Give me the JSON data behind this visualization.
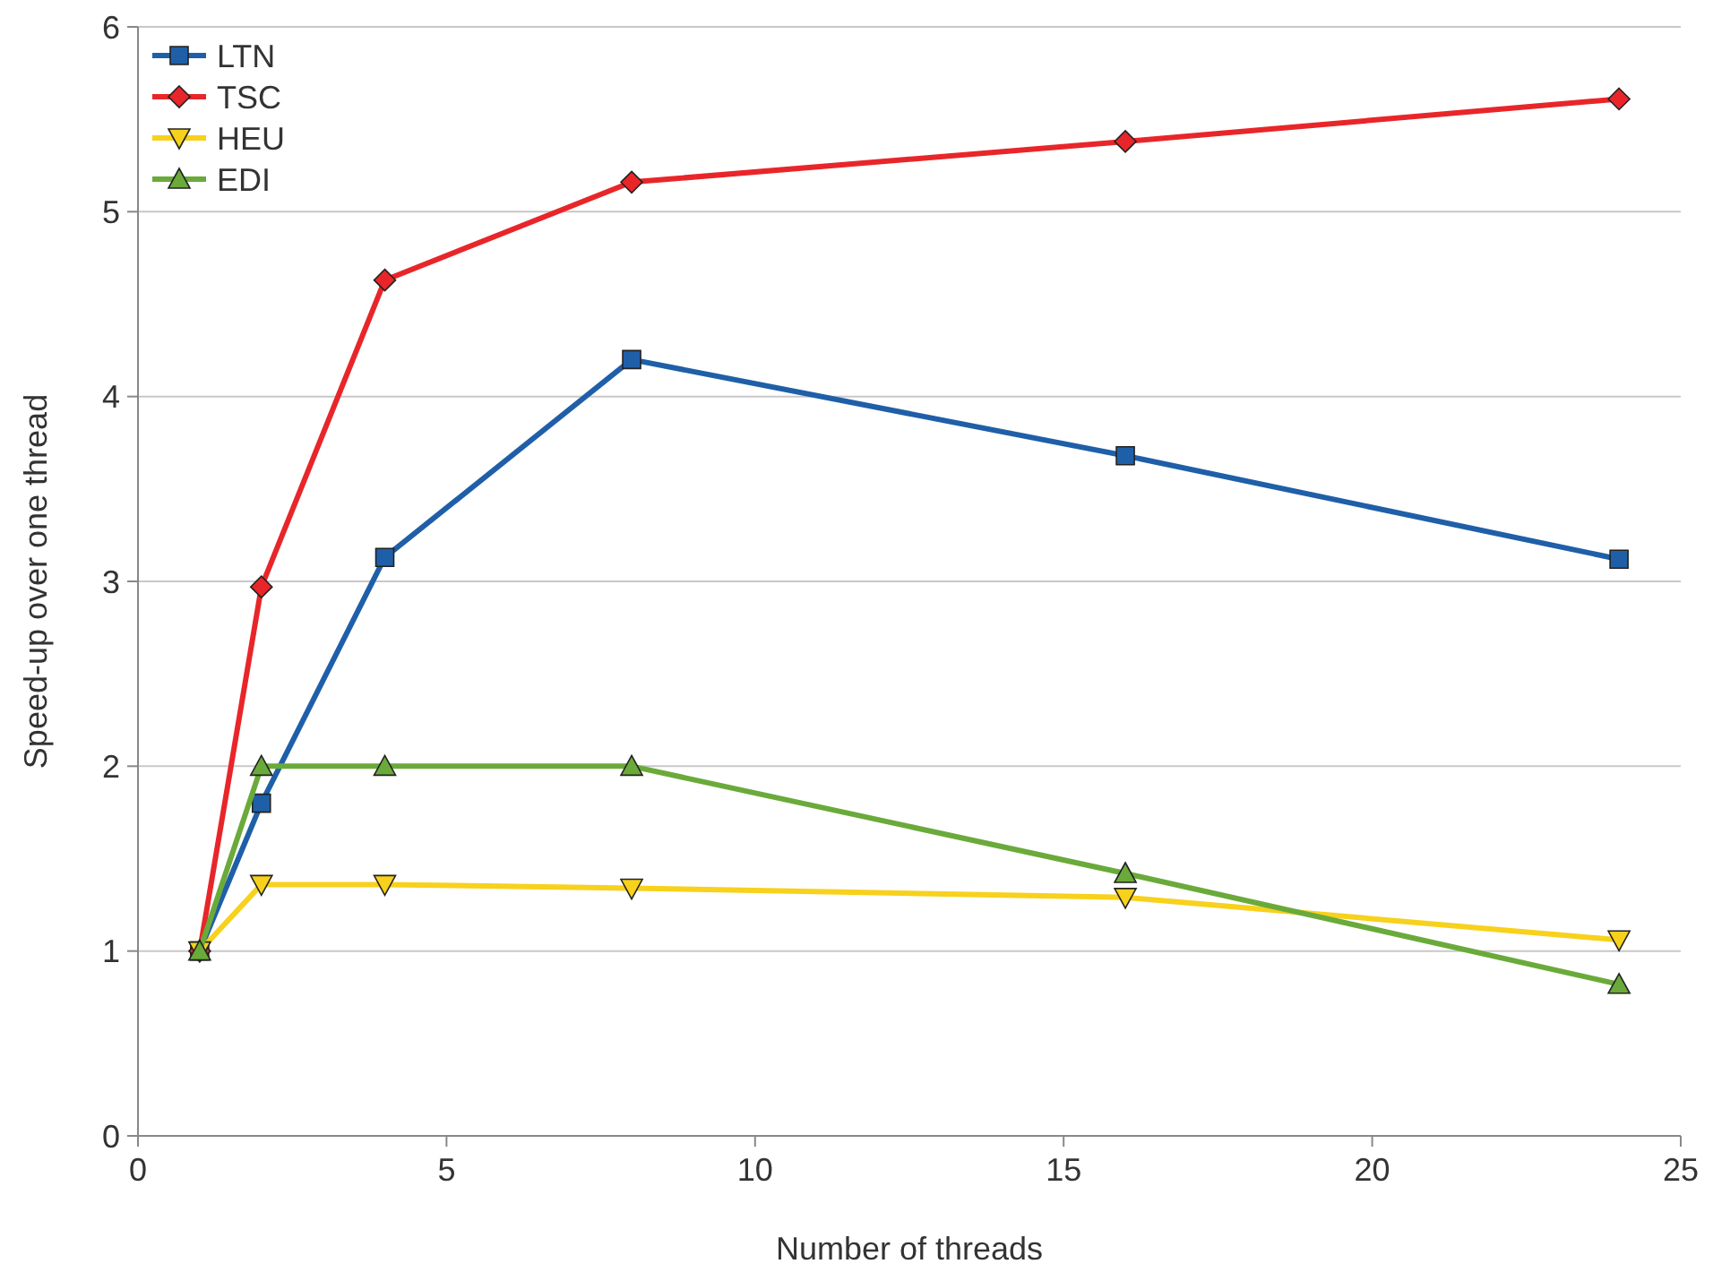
{
  "chart_data": {
    "type": "line",
    "xlabel": "Number of threads",
    "ylabel": "Speed-up over one thread",
    "x": [
      1,
      2,
      4,
      8,
      16,
      24
    ],
    "series": [
      {
        "name": "LTN",
        "color": "#1f5fa8",
        "marker": "square",
        "values": [
          1,
          1.8,
          3.13,
          4.2,
          3.68,
          3.12
        ]
      },
      {
        "name": "TSC",
        "color": "#e8262a",
        "marker": "diamond",
        "values": [
          1,
          2.97,
          4.63,
          5.16,
          5.38,
          5.61
        ]
      },
      {
        "name": "HEU",
        "color": "#f7d11c",
        "marker": "triangle-down",
        "values": [
          1,
          1.36,
          1.36,
          1.34,
          1.29,
          1.06
        ]
      },
      {
        "name": "EDI",
        "color": "#6aaa3a",
        "marker": "triangle",
        "values": [
          1,
          2,
          2,
          2,
          1.42,
          0.82
        ]
      }
    ],
    "xlim": [
      0,
      25
    ],
    "xticks": [
      0,
      5,
      10,
      15,
      20,
      25
    ],
    "ylim": [
      0,
      6
    ],
    "yticks": [
      0,
      1,
      2,
      3,
      4,
      5,
      6
    ],
    "grid": "y",
    "legend": "top left",
    "line_style": "solid"
  }
}
